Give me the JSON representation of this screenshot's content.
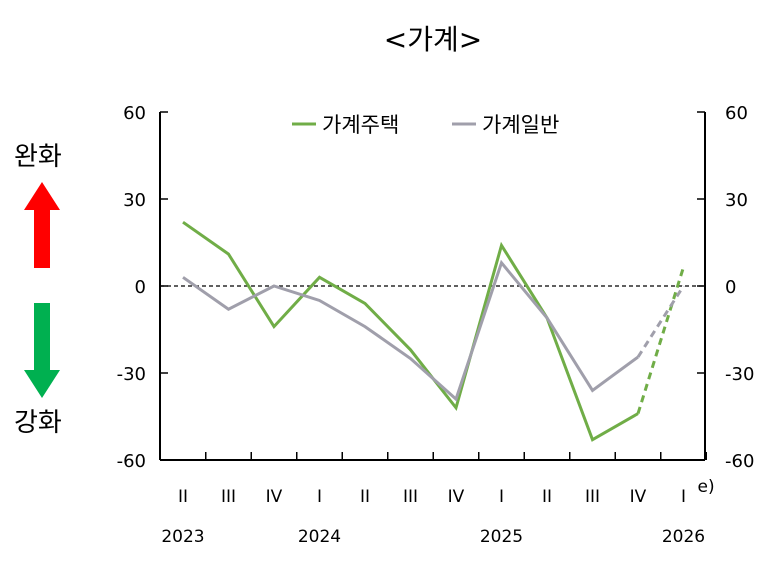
{
  "title": "<가계>",
  "side_labels": {
    "top": "완화",
    "bottom": "강화"
  },
  "colors": {
    "house": "#70ad47",
    "general": "#a09fab",
    "up_arrow": "#ff0000",
    "down_arrow": "#00b050"
  },
  "chart_data": {
    "type": "line",
    "title": "<가계>",
    "categories": [
      "II",
      "III",
      "IV",
      "I",
      "II",
      "III",
      "IV",
      "I",
      "II",
      "III",
      "IV",
      "I"
    ],
    "category_suffix": "e)",
    "years": [
      {
        "label": "2023",
        "index": 0
      },
      {
        "label": "2024",
        "index": 3
      },
      {
        "label": "2025",
        "index": 7
      },
      {
        "label": "2026",
        "index": 11
      }
    ],
    "ylim": [
      -60,
      60
    ],
    "yticks": [
      "60",
      "30",
      "0",
      "-30",
      "-60"
    ],
    "ytick_values": [
      60,
      30,
      0,
      -30,
      -60
    ],
    "zero_line": "dashed",
    "legend_position": "top",
    "series": [
      {
        "name": "가계주택",
        "color": "#70ad47",
        "values": [
          22,
          11,
          -14,
          3,
          -6,
          -22,
          -42,
          14,
          -11,
          -53,
          -44,
          6.5
        ],
        "dashed_from_index": 10
      },
      {
        "name": "가계일반",
        "color": "#a09fab",
        "values": [
          3,
          -8,
          0,
          -5,
          -14,
          -25,
          -39,
          8,
          -11,
          -36,
          -24.5,
          0
        ],
        "dashed_from_index": 10
      }
    ]
  }
}
